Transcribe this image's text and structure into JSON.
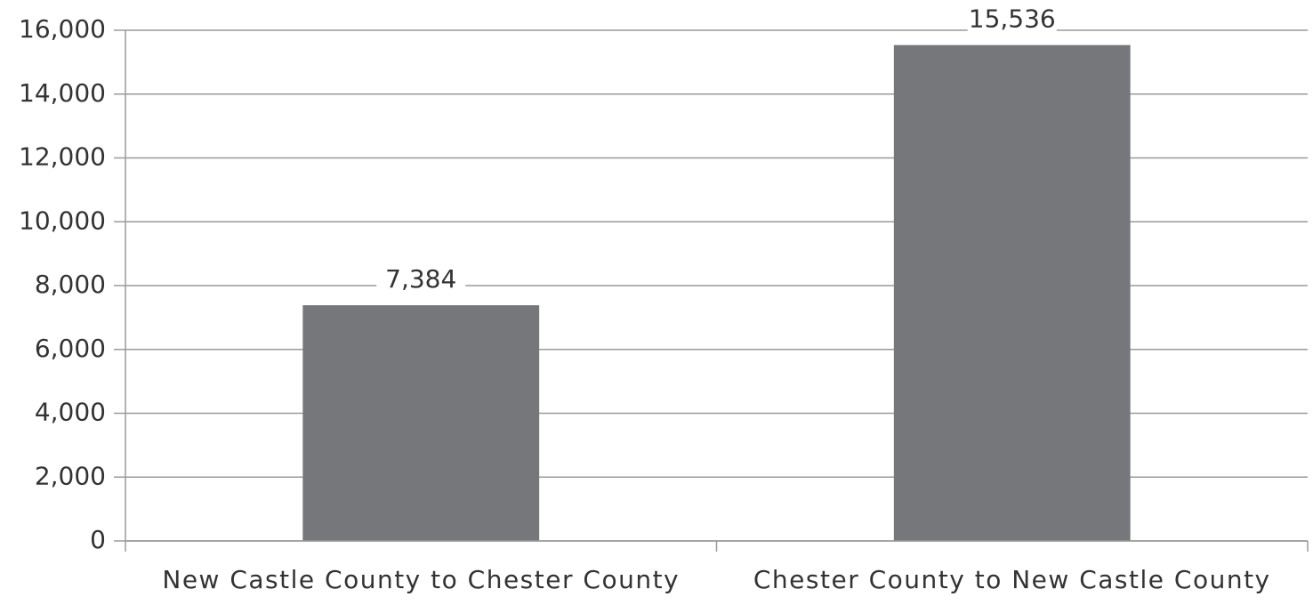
{
  "chart_data": {
    "type": "bar",
    "categories": [
      "New Castle County to Chester County",
      "Chester County to New Castle County"
    ],
    "values": [
      7384,
      15536
    ],
    "value_labels": [
      "7,384",
      "15,536"
    ],
    "color": "#76777b",
    "ylim": [
      0,
      16000
    ],
    "yticks": [
      0,
      {
        "value": 2000,
        "label": "2,000"
      },
      {
        "value": 4000,
        "label": "4,000"
      },
      {
        "value": 6000,
        "label": "6,000"
      },
      {
        "value": 8000,
        "label": "8,000"
      },
      {
        "value": 10000,
        "label": "10,000"
      },
      {
        "value": 12000,
        "label": "12,000"
      },
      {
        "value": 14000,
        "label": "14,000"
      },
      {
        "value": 16000,
        "label": "16,000"
      }
    ],
    "grid": true
  }
}
